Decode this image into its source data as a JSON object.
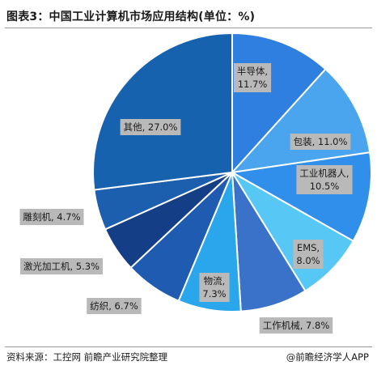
{
  "title": "图表3：中国工业计算机市场应用结构(单位：%)",
  "footer": {
    "source": "资料来源：工控网 前瞻产业研究院整理",
    "brand": "@前瞻经济学人APP"
  },
  "colors": {
    "slices": [
      "#2f7fe0",
      "#4aa4ee",
      "#2f8fea",
      "#57c7f5",
      "#3a72c9",
      "#29a6ec",
      "#1f5bb0",
      "#143e86",
      "#1c5fae",
      "#1762ae"
    ],
    "label_bg": "#b9b9b9"
  },
  "chart_data": {
    "type": "pie",
    "title": "图表3：中国工业计算机市场应用结构(单位：%)",
    "unit": "%",
    "slices": [
      {
        "name": "半导体",
        "value": 11.7,
        "label_lines": [
          "半导体,",
          "11.7%"
        ]
      },
      {
        "name": "包装",
        "value": 11.0,
        "label_lines": [
          "包装, 11.0%"
        ]
      },
      {
        "name": "工业机器人",
        "value": 10.5,
        "label_lines": [
          "工业机器人,",
          "10.5%"
        ]
      },
      {
        "name": "EMS",
        "value": 8.0,
        "label_lines": [
          "EMS,",
          "8.0%"
        ]
      },
      {
        "name": "工作机械",
        "value": 7.8,
        "label_lines": [
          "工作机械, 7.8%"
        ]
      },
      {
        "name": "物流",
        "value": 7.3,
        "label_lines": [
          "物流,",
          "7.3%"
        ]
      },
      {
        "name": "纺织",
        "value": 6.7,
        "label_lines": [
          "纺织, 6.7%"
        ]
      },
      {
        "name": "激光加工机",
        "value": 5.3,
        "label_lines": [
          "激光加工机, 5.3%"
        ]
      },
      {
        "name": "雕刻机",
        "value": 4.7,
        "label_lines": [
          "雕刻机, 4.7%"
        ]
      },
      {
        "name": "其他",
        "value": 27.0,
        "label_lines": [
          "其他, 27.0%"
        ]
      }
    ]
  }
}
